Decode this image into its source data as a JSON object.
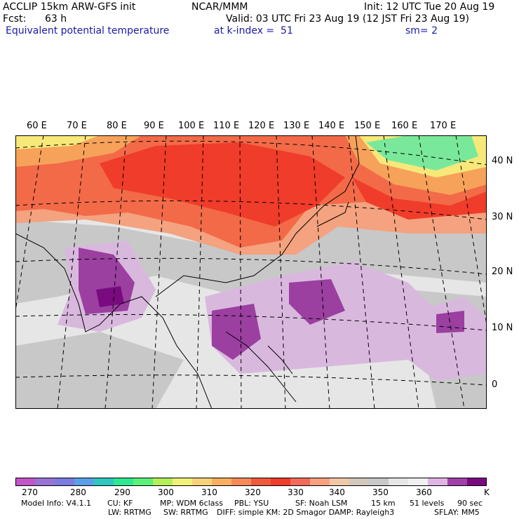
{
  "header": {
    "model_line": "ACCLIP 15km ARW-GFS init",
    "org": "NCAR/MMM",
    "init": "Init: 12 UTC Tue 20 Aug 19",
    "fcst_label": "Fcst:",
    "fcst_value": "63 h",
    "valid": "Valid: 03 UTC Fri 23 Aug 19 (12 JST Fri 23 Aug 19)",
    "field": "Equivalent potential temperature",
    "level": "at k-index =  51",
    "smoothing": "sm= 2"
  },
  "map": {
    "lon_labels": [
      "60 E",
      "70 E",
      "80 E",
      "90 E",
      "100 E",
      "110 E",
      "120 E",
      "130 E",
      "140 E",
      "150 E",
      "160 E",
      "170 E"
    ],
    "lat_labels": [
      "40 N",
      "30 N",
      "20 N",
      "10 N",
      "0"
    ],
    "colors": {
      "purple_dark": "#7a0a80",
      "purple": "#9b3fa0",
      "lavender": "#d9b8de",
      "gray_light": "#e6e6e6",
      "gray": "#c8c8c8",
      "salmon": "#f4a27f",
      "orange_red": "#f26a48",
      "red": "#f03c2a",
      "orange": "#f7a25a",
      "yellow": "#f7e87a",
      "green": "#7ae89a"
    }
  },
  "colorbar": {
    "labels": [
      "270",
      "280",
      "290",
      "300",
      "310",
      "320",
      "330",
      "340",
      "350",
      "360"
    ],
    "unit": "K",
    "colors": [
      "#c355c8",
      "#9a73d6",
      "#7b7be0",
      "#5aa0e8",
      "#2ec8c0",
      "#2ee890",
      "#5af07a",
      "#b4f05a",
      "#f0f07a",
      "#f8d27a",
      "#f8b060",
      "#f88a5a",
      "#f05a3c",
      "#f03c2a",
      "#f46a5a",
      "#f8a080",
      "#f0c8a8",
      "#d2c8bc",
      "#c8c8c8",
      "#e6e6e6",
      "#f0f0f0",
      "#e0b4e6",
      "#a040a8",
      "#7a0a80"
    ]
  },
  "footer": {
    "line1": {
      "model": "Model Info: V4.1.1",
      "cu": "CU: KF",
      "mp": "MP: WDM 6class",
      "pbl": "PBL: YSU",
      "sf": "SF: Noah LSM",
      "res": "15 km",
      "levels": "51 levels",
      "dt": "90 sec"
    },
    "line2": {
      "lw": "LW: RRTMG",
      "sw": "SW: RRTMG",
      "diff": "DIFF: simple KM: 2D Smagor DAMP: Rayleigh3",
      "sflay": "SFLAY: MM5"
    }
  }
}
